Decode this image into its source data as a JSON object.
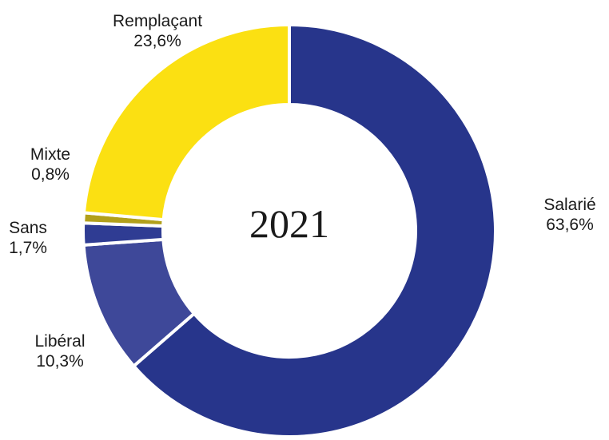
{
  "chart_data": {
    "type": "pie",
    "donut": true,
    "center_label": "2021",
    "slices": [
      {
        "label": "Salarié",
        "value_label": "63,6%",
        "value": 63.6,
        "color": "#27358b"
      },
      {
        "label": "Libéral",
        "value_label": "10,3%",
        "value": 10.3,
        "color": "#3e4899"
      },
      {
        "label": "Sans",
        "value_label": "1,7%",
        "value": 1.7,
        "color": "#2f3c93"
      },
      {
        "label": "Mixte",
        "value_label": "0,8%",
        "value": 0.8,
        "color": "#b2a01b"
      },
      {
        "label": "Remplaçant",
        "value_label": "23,6%",
        "value": 23.6,
        "color": "#fbe012"
      }
    ]
  }
}
